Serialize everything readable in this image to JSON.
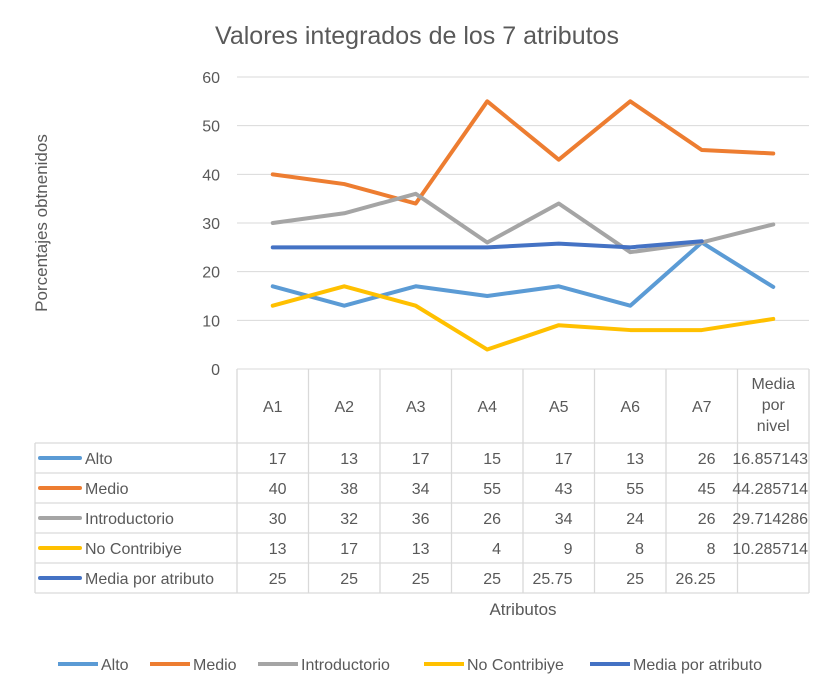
{
  "chart_data": {
    "type": "line",
    "title": "Valores integrados de los 7 atributos",
    "xlabel": "Atributos",
    "ylabel": "Porcentajes obtnenidos",
    "ylim": [
      0,
      60
    ],
    "yticks": [
      0,
      10,
      20,
      30,
      40,
      50,
      60
    ],
    "grid": true,
    "legend": "bottom",
    "categories": [
      "A1",
      "A2",
      "A3",
      "A4",
      "A5",
      "A6",
      "A7",
      "Media por nivel"
    ],
    "series": [
      {
        "name": "Alto",
        "color": "#5B9BD5",
        "values": [
          17,
          13,
          17,
          15,
          17,
          13,
          26,
          16.857143
        ],
        "labels": [
          "17",
          "13",
          "17",
          "15",
          "17",
          "13",
          "26",
          "16.857143"
        ]
      },
      {
        "name": "Medio",
        "color": "#ED7D31",
        "values": [
          40,
          38,
          34,
          55,
          43,
          55,
          45,
          44.285714
        ],
        "labels": [
          "40",
          "38",
          "34",
          "55",
          "43",
          "55",
          "45",
          "44.285714"
        ]
      },
      {
        "name": "Introductorio",
        "color": "#A5A5A5",
        "values": [
          30,
          32,
          36,
          26,
          34,
          24,
          26,
          29.714286
        ],
        "labels": [
          "30",
          "32",
          "36",
          "26",
          "34",
          "24",
          "26",
          "29.714286"
        ]
      },
      {
        "name": "No Contribiye",
        "color": "#FFC000",
        "values": [
          13,
          17,
          13,
          4,
          9,
          8,
          8,
          10.285714
        ],
        "labels": [
          "13",
          "17",
          "13",
          "4",
          "9",
          "8",
          "8",
          "10.285714"
        ]
      },
      {
        "name": "Media por atributo",
        "color": "#4472C4",
        "values": [
          25,
          25,
          25,
          25,
          25.75,
          25,
          26.25,
          null
        ],
        "labels": [
          "25",
          "25",
          "25",
          "25",
          "25.75",
          "25",
          "26.25",
          ""
        ]
      }
    ]
  }
}
